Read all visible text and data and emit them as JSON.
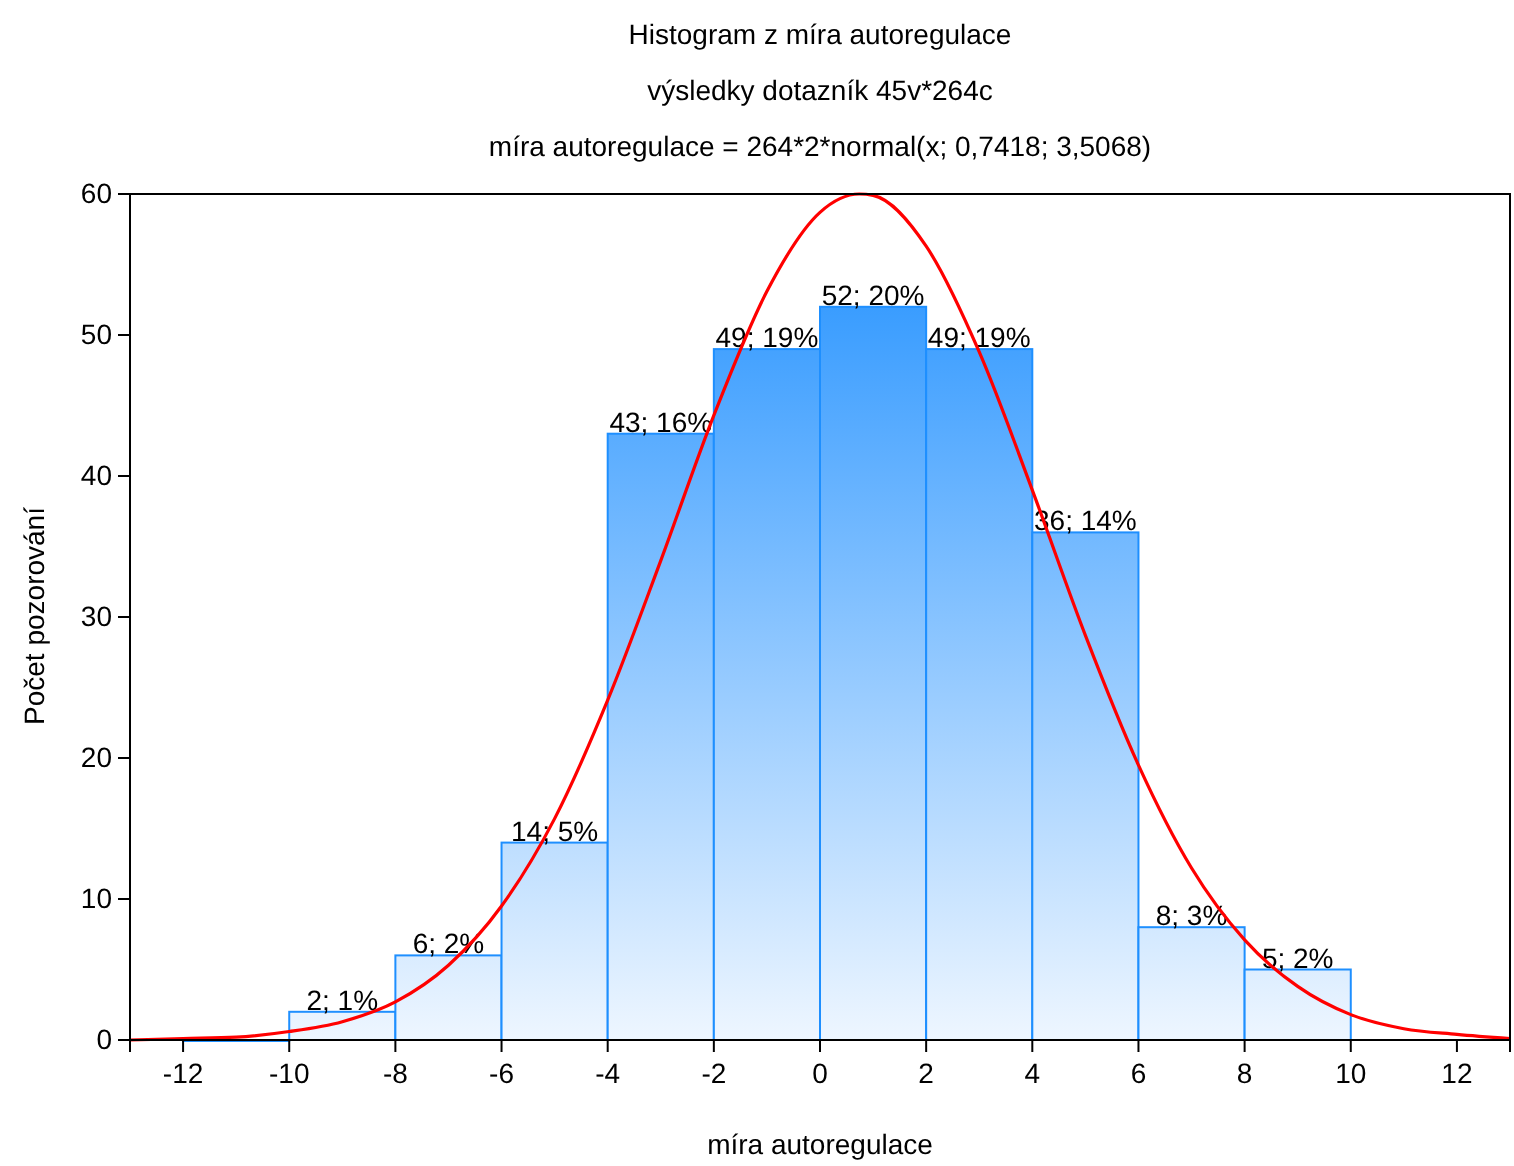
{
  "chart_data": {
    "type": "histogram",
    "title": "Histogram z míra autoregulace",
    "subtitle": "výsledky  dotazník  45v*264c",
    "annotations": [
      "míra autoregulace = 264*2*normal(x; 0,7418; 3,5068)"
    ],
    "xlabel": "míra autoregulace",
    "ylabel": "Počet pozorování",
    "xlim": [
      -13,
      13
    ],
    "xticks": [
      -12,
      -10,
      -8,
      -6,
      -4,
      -2,
      0,
      2,
      4,
      6,
      8,
      10,
      12
    ],
    "ylim": [
      0,
      60
    ],
    "yticks": [
      0,
      10,
      20,
      30,
      40,
      50,
      60
    ],
    "grid": false,
    "series": [
      {
        "color": "#1e8fff",
        "bins": [
          -12,
          -10,
          -8,
          -6,
          -4,
          -2,
          0,
          2,
          4,
          6,
          8,
          10
        ],
        "values": [
          0,
          2,
          6,
          14,
          43,
          49,
          52,
          49,
          36,
          8,
          5
        ],
        "value_labels": [
          null,
          "2; 1%",
          "6; 2%",
          "14; 5%",
          "43; 16%",
          "49; 19%",
          "52; 20%",
          "49; 19%",
          "36; 14%",
          "8; 3%",
          "5; 2%"
        ]
      },
      {
        "type": "line",
        "color": "#ff0000",
        "x": [
          -13,
          -12,
          -11,
          -10,
          -9,
          -8,
          -7,
          -6,
          -5,
          -4,
          -3,
          -2,
          -1,
          0,
          0.74,
          1,
          2,
          3,
          4,
          5,
          6,
          7,
          8,
          9,
          10,
          11,
          12,
          13
        ],
        "values": [
          0,
          0.1,
          0.2,
          0.6,
          1.3,
          2.7,
          5.3,
          9.5,
          15.7,
          24.1,
          34,
          44.3,
          53.1,
          58.7,
          60,
          59.9,
          56.3,
          48.8,
          39,
          28.7,
          19.5,
          12.2,
          7.1,
          3.8,
          1.8,
          0.8,
          0.4,
          0.1
        ]
      }
    ]
  }
}
